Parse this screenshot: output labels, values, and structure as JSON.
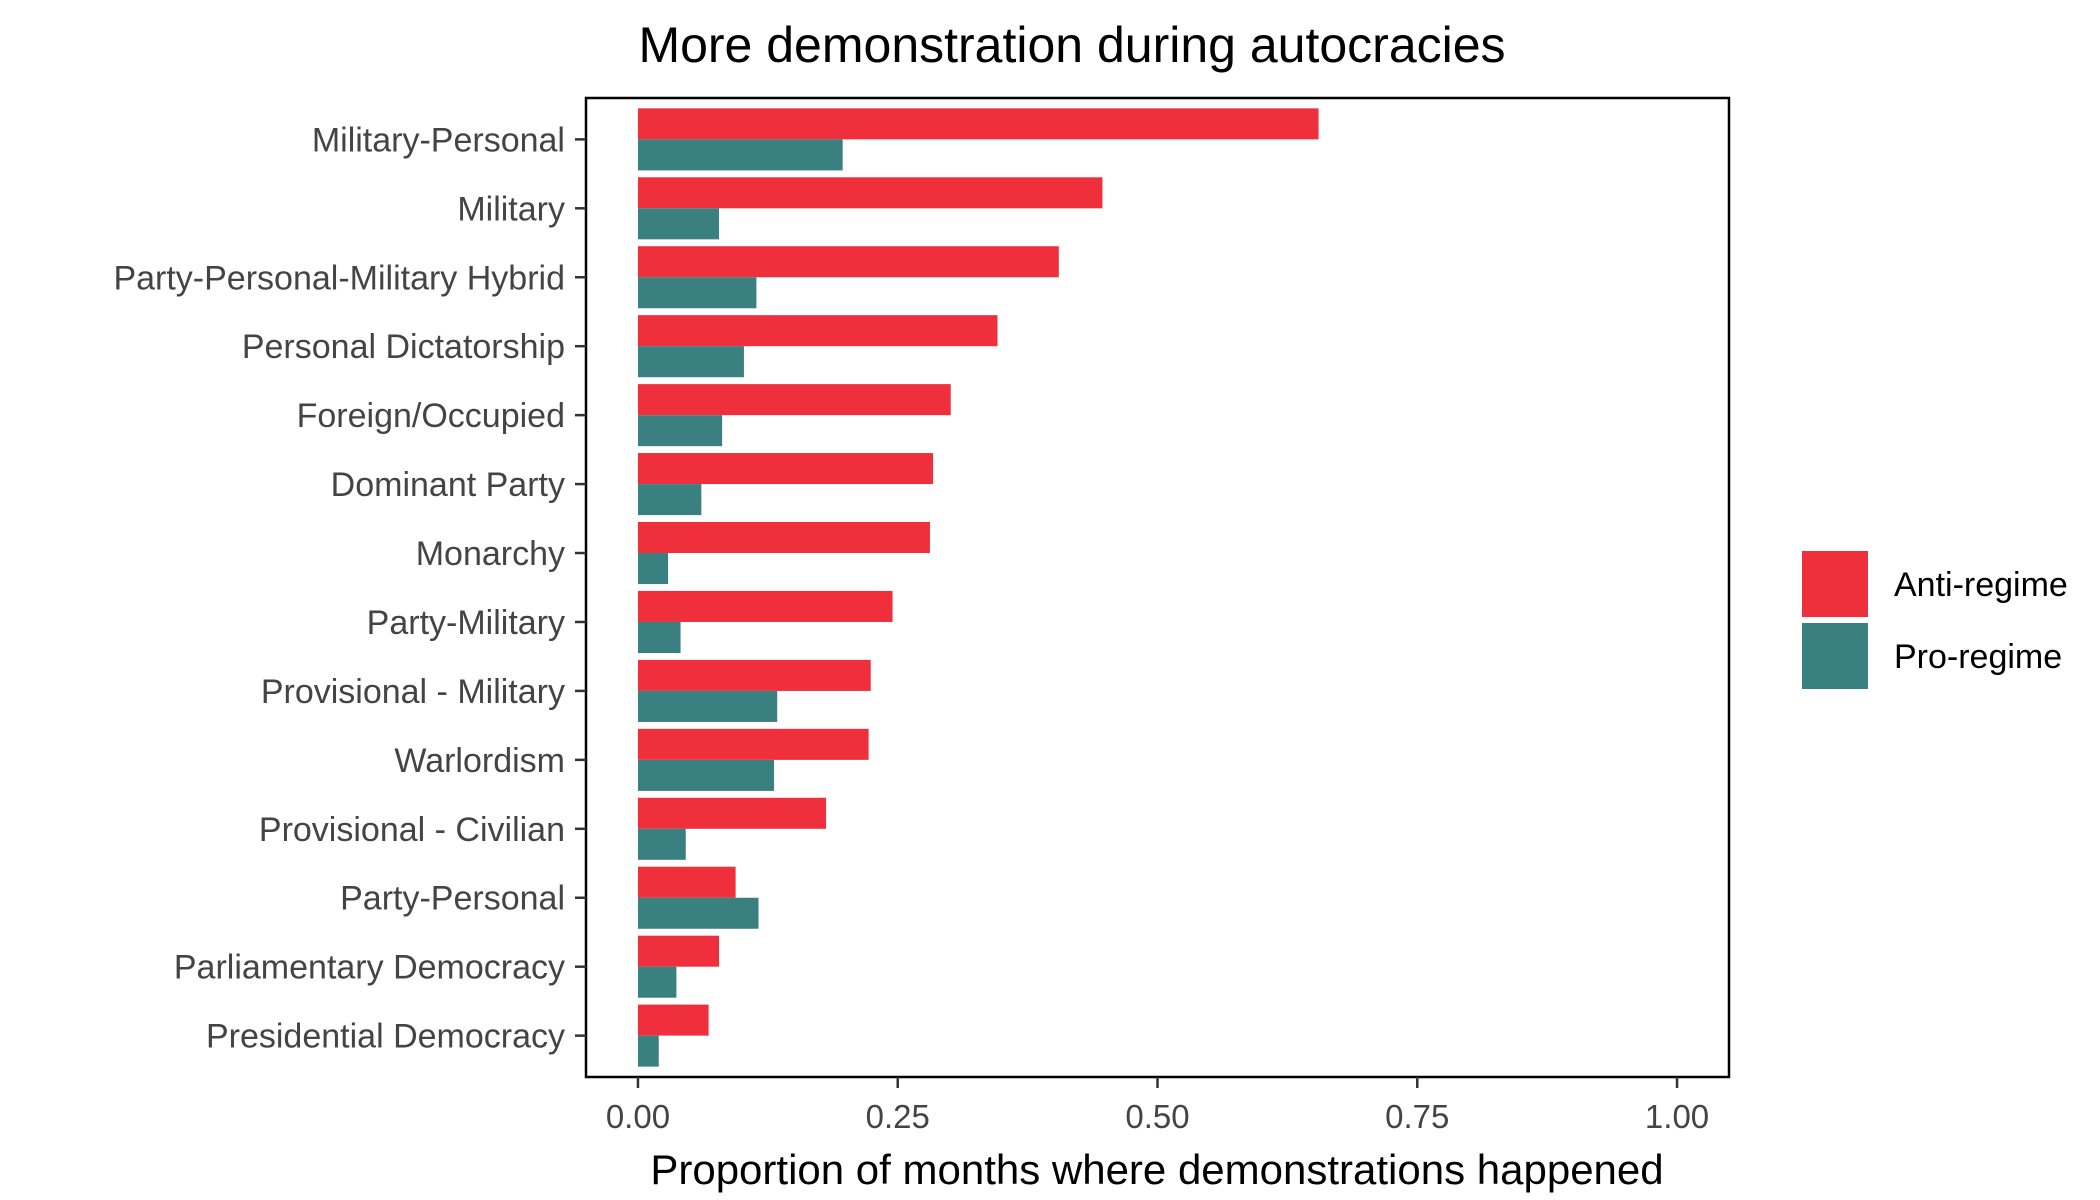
{
  "chart_data": {
    "type": "bar",
    "orientation": "horizontal",
    "title": "More demonstration during autocracies",
    "xlabel": "Proportion of months where demonstrations happened",
    "ylabel": "",
    "xlim": [
      -0.05,
      1.05
    ],
    "x_ticks": [
      0,
      0.25,
      0.5,
      0.75,
      1.0
    ],
    "x_tick_labels": [
      "0.00",
      "0.25",
      "0.50",
      "0.75",
      "1.00"
    ],
    "grid": false,
    "legend_position": "right",
    "categories": [
      "Military-Personal",
      "Military",
      "Party-Personal-Military Hybrid",
      "Personal Dictatorship",
      "Foreign/Occupied",
      "Dominant Party",
      "Monarchy",
      "Party-Military",
      "Provisional - Military",
      "Warlordism",
      "Provisional - Civilian",
      "Party-Personal",
      "Parliamentary Democracy",
      "Presidential Democracy"
    ],
    "series": [
      {
        "name": "Anti-regime",
        "color": "#EF2F3C",
        "values": [
          0.655,
          0.447,
          0.405,
          0.346,
          0.301,
          0.284,
          0.281,
          0.245,
          0.224,
          0.222,
          0.181,
          0.094,
          0.078,
          0.068
        ]
      },
      {
        "name": "Pro-regime",
        "color": "#3A8080",
        "values": [
          0.197,
          0.078,
          0.114,
          0.102,
          0.081,
          0.061,
          0.029,
          0.041,
          0.134,
          0.131,
          0.046,
          0.116,
          0.037,
          0.02
        ]
      }
    ]
  }
}
